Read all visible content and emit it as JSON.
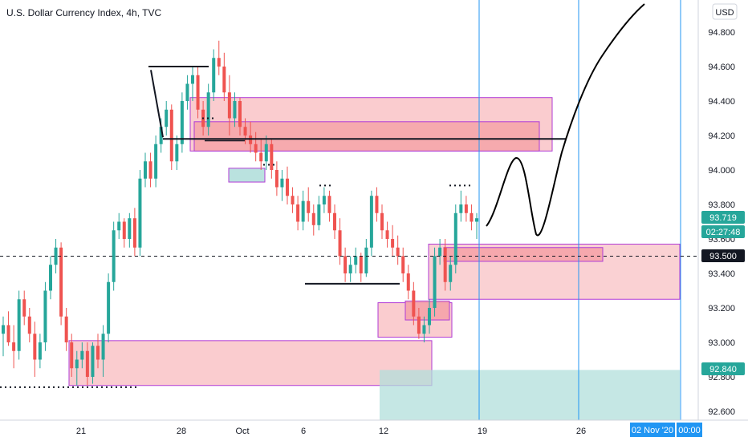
{
  "header": {
    "title": "U.S. Dollar Currency Index, 4h, TVC",
    "currency_button": "USD"
  },
  "chart_data": {
    "type": "candlestick",
    "title": "U.S. Dollar Currency Index, 4h, TVC",
    "ylim": [
      92.55,
      94.95
    ],
    "y_ticks": [
      "94.800",
      "94.600",
      "94.400",
      "94.200",
      "94.000",
      "93.800",
      "93.600",
      "93.400",
      "93.200",
      "93.000",
      "92.800",
      "92.600"
    ],
    "y_tick_values": [
      94.8,
      94.6,
      94.4,
      94.2,
      94.0,
      93.8,
      93.6,
      93.4,
      93.2,
      93.0,
      92.8,
      92.6
    ],
    "x_ticks": [
      "21",
      "28",
      "Oct",
      "6",
      "12",
      "19",
      "26"
    ],
    "grid": false,
    "colors": {
      "up": "#26a69a",
      "down": "#ef5350",
      "zone_fill": "#f5a3a8",
      "zone_border": "#b03bd6",
      "demand_fill": "#b2dfdb",
      "vline": "#2196f3"
    },
    "price_tags": [
      {
        "label": "93.719",
        "value": 93.719,
        "bg": "#26a69a"
      },
      {
        "label": "02:27:48",
        "value": 93.63,
        "bg": "#26a69a"
      },
      {
        "label": "93.500",
        "value": 93.5,
        "bg": "#131722"
      },
      {
        "label": "92.840",
        "value": 92.84,
        "bg": "#26a69a"
      }
    ],
    "date_tags": [
      {
        "label": "02 Nov '20",
        "bg": "#2196f3"
      },
      {
        "label": "00:00",
        "bg": "#2196f3"
      }
    ],
    "reference_line": 93.5,
    "candles": [
      [
        93.05,
        93.15,
        92.92,
        93.1
      ],
      [
        93.1,
        93.18,
        92.98,
        93.0
      ],
      [
        93.0,
        93.1,
        92.85,
        92.95
      ],
      [
        92.95,
        93.3,
        92.9,
        93.25
      ],
      [
        93.25,
        93.3,
        93.1,
        93.15
      ],
      [
        93.15,
        93.2,
        93.0,
        93.05
      ],
      [
        93.05,
        93.12,
        92.8,
        92.9
      ],
      [
        92.9,
        93.05,
        92.85,
        93.0
      ],
      [
        93.0,
        93.35,
        92.95,
        93.3
      ],
      [
        93.3,
        93.5,
        93.25,
        93.45
      ],
      [
        93.45,
        93.6,
        93.4,
        93.55
      ],
      [
        93.55,
        93.58,
        93.1,
        93.15
      ],
      [
        93.15,
        93.2,
        92.95,
        93.0
      ],
      [
        93.0,
        93.05,
        92.8,
        92.85
      ],
      [
        92.85,
        92.95,
        92.75,
        92.9
      ],
      [
        92.9,
        93.0,
        92.85,
        92.95
      ],
      [
        92.95,
        93.0,
        92.75,
        92.8
      ],
      [
        92.8,
        93.0,
        92.76,
        92.98
      ],
      [
        92.98,
        93.05,
        92.85,
        92.9
      ],
      [
        92.9,
        93.1,
        92.8,
        93.05
      ],
      [
        93.05,
        93.4,
        93.0,
        93.35
      ],
      [
        93.35,
        93.7,
        93.3,
        93.65
      ],
      [
        93.65,
        93.75,
        93.6,
        93.7
      ],
      [
        93.7,
        93.72,
        93.55,
        93.6
      ],
      [
        93.6,
        93.75,
        93.55,
        93.72
      ],
      [
        93.72,
        93.78,
        93.5,
        93.55
      ],
      [
        93.55,
        94.0,
        93.5,
        93.95
      ],
      [
        93.95,
        94.1,
        93.9,
        94.05
      ],
      [
        94.05,
        94.1,
        93.9,
        93.95
      ],
      [
        93.95,
        94.2,
        93.9,
        94.15
      ],
      [
        94.15,
        94.3,
        94.1,
        94.25
      ],
      [
        94.25,
        94.4,
        94.2,
        94.35
      ],
      [
        94.35,
        94.38,
        94.0,
        94.05
      ],
      [
        94.05,
        94.2,
        94.0,
        94.15
      ],
      [
        94.15,
        94.45,
        94.1,
        94.4
      ],
      [
        94.4,
        94.55,
        94.35,
        94.5
      ],
      [
        94.5,
        94.6,
        94.4,
        94.55
      ],
      [
        94.55,
        94.6,
        94.3,
        94.35
      ],
      [
        94.35,
        94.4,
        94.2,
        94.25
      ],
      [
        94.25,
        94.5,
        94.2,
        94.45
      ],
      [
        94.45,
        94.7,
        94.4,
        94.65
      ],
      [
        94.65,
        94.75,
        94.55,
        94.6
      ],
      [
        94.6,
        94.68,
        94.4,
        94.45
      ],
      [
        94.45,
        94.55,
        94.2,
        94.3
      ],
      [
        94.3,
        94.45,
        94.25,
        94.4
      ],
      [
        94.4,
        94.42,
        94.2,
        94.25
      ],
      [
        94.25,
        94.3,
        94.15,
        94.2
      ],
      [
        94.2,
        94.28,
        94.1,
        94.15
      ],
      [
        94.15,
        94.22,
        94.05,
        94.1
      ],
      [
        94.1,
        94.18,
        94.0,
        94.05
      ],
      [
        94.05,
        94.2,
        94.0,
        94.15
      ],
      [
        94.15,
        94.18,
        93.95,
        94.0
      ],
      [
        94.0,
        94.05,
        93.85,
        93.9
      ],
      [
        93.9,
        94.0,
        93.82,
        93.95
      ],
      [
        93.95,
        94.02,
        93.8,
        93.85
      ],
      [
        93.85,
        93.9,
        93.75,
        93.8
      ],
      [
        93.8,
        93.85,
        93.65,
        93.7
      ],
      [
        93.7,
        93.88,
        93.65,
        93.82
      ],
      [
        93.82,
        93.9,
        93.7,
        93.75
      ],
      [
        93.75,
        93.8,
        93.62,
        93.68
      ],
      [
        93.68,
        93.85,
        93.65,
        93.8
      ],
      [
        93.8,
        93.9,
        93.75,
        93.85
      ],
      [
        93.85,
        93.88,
        93.7,
        93.75
      ],
      [
        93.75,
        93.8,
        93.6,
        93.65
      ],
      [
        93.65,
        93.72,
        93.45,
        93.5
      ],
      [
        93.5,
        93.55,
        93.35,
        93.4
      ],
      [
        93.4,
        93.5,
        93.35,
        93.45
      ],
      [
        93.45,
        93.55,
        93.4,
        93.5
      ],
      [
        93.5,
        93.52,
        93.35,
        93.4
      ],
      [
        93.4,
        93.6,
        93.38,
        93.55
      ],
      [
        93.55,
        93.88,
        93.5,
        93.85
      ],
      [
        93.85,
        93.9,
        93.7,
        93.75
      ],
      [
        93.75,
        93.8,
        93.6,
        93.65
      ],
      [
        93.65,
        93.7,
        93.55,
        93.6
      ],
      [
        93.6,
        93.68,
        93.5,
        93.55
      ],
      [
        93.55,
        93.62,
        93.45,
        93.5
      ],
      [
        93.5,
        93.55,
        93.35,
        93.4
      ],
      [
        93.4,
        93.45,
        93.25,
        93.3
      ],
      [
        93.3,
        93.35,
        93.1,
        93.15
      ],
      [
        93.15,
        93.2,
        93.02,
        93.05
      ],
      [
        93.05,
        93.15,
        93.0,
        93.1
      ],
      [
        93.1,
        93.25,
        93.05,
        93.2
      ],
      [
        93.2,
        93.55,
        93.15,
        93.5
      ],
      [
        93.5,
        93.6,
        93.45,
        93.55
      ],
      [
        93.55,
        93.6,
        93.3,
        93.35
      ],
      [
        93.35,
        93.5,
        93.3,
        93.45
      ],
      [
        93.45,
        93.8,
        93.4,
        93.75
      ],
      [
        93.75,
        93.88,
        93.7,
        93.8
      ],
      [
        93.8,
        93.85,
        93.7,
        93.75
      ],
      [
        93.75,
        93.8,
        93.65,
        93.7
      ],
      [
        93.7,
        93.75,
        93.6,
        93.72
      ]
    ]
  }
}
